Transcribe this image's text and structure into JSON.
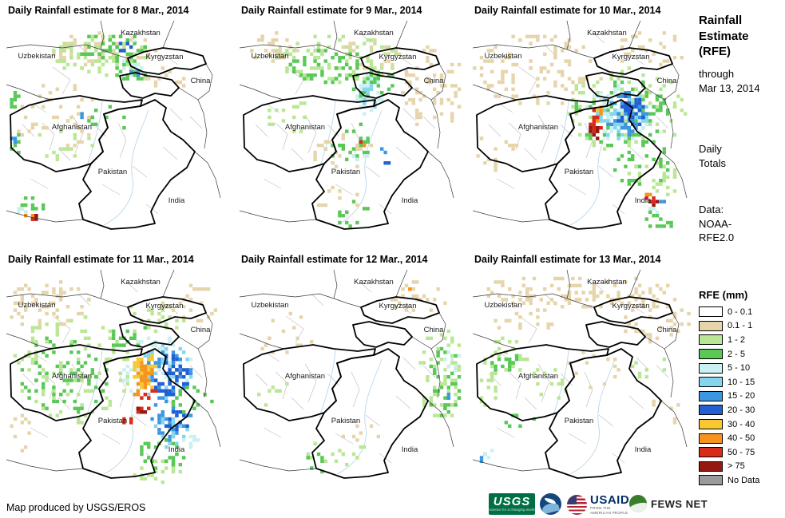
{
  "panels": [
    {
      "title": "Daily Rainfall estimate for 8 Mar., 2014"
    },
    {
      "title": "Daily Rainfall estimate for 9 Mar., 2014"
    },
    {
      "title": "Daily Rainfall estimate for 10 Mar., 2014"
    },
    {
      "title": "Daily Rainfall estimate for 11 Mar., 2014"
    },
    {
      "title": "Daily Rainfall estimate for 12 Mar., 2014"
    },
    {
      "title": "Daily Rainfall estimate for 13 Mar., 2014"
    }
  ],
  "map_labels": [
    "Kazakhstan",
    "Uzbekistan",
    "Kyrgyzstan",
    "China",
    "Afghanistan",
    "Pakistan",
    "India"
  ],
  "sidebar": {
    "title_line1": "Rainfall",
    "title_line2": "Estimate",
    "title_line3": "(RFE)",
    "through": "through",
    "date": "Mar 13, 2014",
    "totals_line1": "Daily",
    "totals_line2": "Totals",
    "data_label": "Data:",
    "data_line1": "NOAA-",
    "data_line2": "RFE2.0",
    "legend_title": "RFE (mm)",
    "legend": [
      {
        "label": "0 - 0.1",
        "color": "#ffffff"
      },
      {
        "label": "0.1 - 1",
        "color": "#e6d4ab"
      },
      {
        "label": "1 - 2",
        "color": "#b9e795"
      },
      {
        "label": "2 - 5",
        "color": "#59c857"
      },
      {
        "label": "5 - 10",
        "color": "#c9f1f1"
      },
      {
        "label": "10 - 15",
        "color": "#85d5ee"
      },
      {
        "label": "15 - 20",
        "color": "#3b97e0"
      },
      {
        "label": "20 - 30",
        "color": "#2160d3"
      },
      {
        "label": "30 - 40",
        "color": "#f8c832"
      },
      {
        "label": "40 - 50",
        "color": "#f7941e"
      },
      {
        "label": "50 - 75",
        "color": "#d92b1a"
      },
      {
        "label": "> 75",
        "color": "#951811"
      },
      {
        "label": "No Data",
        "color": "#9a9a9a"
      }
    ]
  },
  "footer": {
    "credit": "Map produced by USGS/EROS"
  },
  "logos": {
    "usgs_text": "USGS",
    "usgs_tagline": "science for a changing world",
    "usaid_text": "USAID",
    "usaid_tagline": "FROM THE AMERICAN PEOPLE",
    "fewsnet_text": "FEWS NET"
  },
  "map_data": {
    "seeds": [
      11,
      22,
      33,
      44,
      55,
      66
    ],
    "clusters": [
      [
        [
          120,
          35,
          70,
          22,
          1,
          55
        ],
        [
          60,
          120,
          55,
          45,
          1,
          45
        ],
        [
          115,
          40,
          60,
          25,
          2,
          70
        ],
        [
          130,
          30,
          45,
          18,
          3,
          45
        ],
        [
          155,
          60,
          25,
          14,
          3,
          18
        ],
        [
          150,
          55,
          18,
          10,
          4,
          10
        ],
        [
          148,
          30,
          10,
          6,
          7,
          5
        ],
        [
          160,
          62,
          8,
          5,
          6,
          4
        ],
        [
          8,
          95,
          8,
          12,
          3,
          8
        ],
        [
          8,
          150,
          8,
          15,
          3,
          8
        ],
        [
          6,
          150,
          5,
          8,
          6,
          3
        ],
        [
          200,
          70,
          30,
          15,
          1,
          12
        ],
        [
          75,
          150,
          40,
          25,
          2,
          15
        ],
        [
          130,
          120,
          30,
          20,
          3,
          10
        ],
        [
          95,
          115,
          4,
          3,
          6,
          2
        ],
        [
          30,
          230,
          18,
          12,
          3,
          12
        ],
        [
          20,
          235,
          8,
          5,
          4,
          4
        ],
        [
          28,
          240,
          5,
          4,
          9,
          2
        ],
        [
          32,
          243,
          6,
          4,
          10,
          4
        ],
        [
          35,
          245,
          4,
          3,
          11,
          2
        ]
      ],
      [
        [
          40,
          30,
          35,
          20,
          1,
          30
        ],
        [
          240,
          80,
          40,
          55,
          1,
          70
        ],
        [
          160,
          40,
          40,
          20,
          1,
          25
        ],
        [
          120,
          45,
          80,
          30,
          2,
          90
        ],
        [
          110,
          55,
          50,
          22,
          3,
          50
        ],
        [
          170,
          80,
          30,
          18,
          3,
          25
        ],
        [
          160,
          90,
          18,
          25,
          4,
          25
        ],
        [
          162,
          95,
          10,
          18,
          5,
          12
        ],
        [
          60,
          120,
          30,
          25,
          2,
          15
        ],
        [
          140,
          150,
          35,
          25,
          3,
          25
        ],
        [
          130,
          165,
          40,
          25,
          1,
          20
        ],
        [
          150,
          170,
          10,
          6,
          4,
          5
        ],
        [
          150,
          155,
          5,
          4,
          9,
          2
        ],
        [
          175,
          160,
          5,
          4,
          6,
          2
        ],
        [
          185,
          175,
          4,
          3,
          7,
          2
        ],
        [
          152,
          150,
          3,
          3,
          10,
          1
        ],
        [
          120,
          220,
          30,
          15,
          1,
          10
        ],
        [
          140,
          240,
          25,
          15,
          3,
          12
        ]
      ],
      [
        [
          80,
          60,
          80,
          45,
          1,
          110
        ],
        [
          220,
          35,
          45,
          25,
          1,
          30
        ],
        [
          30,
          160,
          25,
          30,
          1,
          15
        ],
        [
          190,
          110,
          75,
          55,
          2,
          90
        ],
        [
          185,
          115,
          60,
          45,
          3,
          80
        ],
        [
          180,
          115,
          40,
          35,
          4,
          60
        ],
        [
          185,
          115,
          32,
          30,
          5,
          50
        ],
        [
          190,
          115,
          26,
          26,
          6,
          45
        ],
        [
          196,
          112,
          18,
          20,
          7,
          35
        ],
        [
          158,
          108,
          5,
          5,
          8,
          3
        ],
        [
          156,
          115,
          5,
          8,
          9,
          5
        ],
        [
          152,
          125,
          7,
          18,
          10,
          14
        ],
        [
          150,
          135,
          5,
          10,
          11,
          6
        ],
        [
          210,
          175,
          40,
          30,
          3,
          35
        ],
        [
          225,
          195,
          35,
          25,
          2,
          25
        ],
        [
          218,
          218,
          6,
          5,
          9,
          3
        ],
        [
          222,
          222,
          8,
          6,
          10,
          6
        ],
        [
          226,
          226,
          4,
          3,
          11,
          2
        ],
        [
          228,
          250,
          20,
          12,
          3,
          12
        ],
        [
          225,
          235,
          10,
          6,
          4,
          4
        ],
        [
          236,
          224,
          5,
          4,
          6,
          2
        ]
      ],
      [
        [
          50,
          40,
          55,
          30,
          1,
          60
        ],
        [
          230,
          40,
          40,
          25,
          1,
          25
        ],
        [
          80,
          120,
          75,
          70,
          2,
          110
        ],
        [
          70,
          130,
          55,
          50,
          3,
          70
        ],
        [
          180,
          60,
          40,
          20,
          2,
          25
        ],
        [
          150,
          80,
          30,
          15,
          3,
          18
        ],
        [
          185,
          120,
          45,
          40,
          4,
          45
        ],
        [
          195,
          125,
          38,
          35,
          5,
          45
        ],
        [
          200,
          130,
          32,
          32,
          6,
          45
        ],
        [
          205,
          130,
          24,
          26,
          7,
          40
        ],
        [
          172,
          125,
          16,
          22,
          8,
          30
        ],
        [
          170,
          128,
          12,
          18,
          9,
          22
        ],
        [
          160,
          155,
          6,
          6,
          9,
          4
        ],
        [
          185,
          150,
          5,
          5,
          10,
          3
        ],
        [
          170,
          165,
          10,
          14,
          10,
          12
        ],
        [
          168,
          172,
          6,
          8,
          11,
          5
        ],
        [
          150,
          190,
          8,
          8,
          10,
          5
        ],
        [
          205,
          185,
          25,
          25,
          6,
          30
        ],
        [
          210,
          190,
          16,
          16,
          7,
          15
        ],
        [
          200,
          200,
          25,
          20,
          5,
          20
        ],
        [
          195,
          230,
          35,
          20,
          3,
          25
        ],
        [
          190,
          250,
          35,
          15,
          2,
          18
        ],
        [
          230,
          160,
          25,
          20,
          3,
          15
        ],
        [
          230,
          215,
          12,
          10,
          4,
          8
        ],
        [
          15,
          200,
          15,
          25,
          1,
          10
        ]
      ],
      [
        [
          225,
          30,
          40,
          20,
          1,
          25
        ],
        [
          212,
          22,
          4,
          3,
          9,
          2
        ],
        [
          60,
          80,
          40,
          30,
          1,
          15
        ],
        [
          250,
          130,
          28,
          60,
          2,
          60
        ],
        [
          255,
          140,
          20,
          45,
          3,
          35
        ],
        [
          262,
          110,
          12,
          15,
          4,
          10
        ],
        [
          120,
          230,
          40,
          18,
          2,
          15
        ],
        [
          100,
          240,
          25,
          12,
          3,
          8
        ],
        [
          150,
          200,
          30,
          15,
          1,
          8
        ],
        [
          40,
          150,
          20,
          20,
          2,
          8
        ],
        [
          258,
          155,
          5,
          8,
          6,
          3
        ]
      ],
      [
        [
          130,
          25,
          120,
          20,
          1,
          110
        ],
        [
          230,
          60,
          45,
          30,
          1,
          40
        ],
        [
          60,
          60,
          40,
          20,
          1,
          20
        ],
        [
          40,
          105,
          30,
          25,
          2,
          30
        ],
        [
          35,
          110,
          20,
          16,
          3,
          15
        ],
        [
          15,
          150,
          15,
          20,
          2,
          12
        ],
        [
          90,
          140,
          30,
          20,
          2,
          12
        ],
        [
          140,
          120,
          40,
          30,
          1,
          12
        ],
        [
          220,
          120,
          25,
          15,
          2,
          8
        ],
        [
          12,
          235,
          6,
          6,
          6,
          3
        ],
        [
          18,
          228,
          8,
          5,
          4,
          3
        ],
        [
          60,
          190,
          20,
          12,
          3,
          6
        ],
        [
          240,
          170,
          25,
          20,
          1,
          8
        ]
      ]
    ]
  }
}
